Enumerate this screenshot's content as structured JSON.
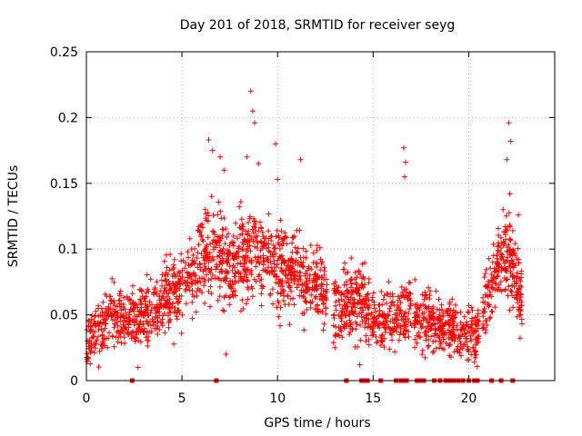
{
  "chart_data": {
    "type": "scatter",
    "title": "Day 201 of 2018, SRMTID for receiver seyg",
    "xlabel": "GPS time / hours",
    "ylabel": "SRMTID / TECUs",
    "xlim": [
      0,
      24.5
    ],
    "ylim": [
      0,
      0.25
    ],
    "x_ticks": [
      0,
      5,
      10,
      15,
      20
    ],
    "y_ticks": [
      0,
      0.05,
      0.1,
      0.15,
      0.2,
      0.25
    ],
    "x_tick_labels": [
      "0",
      "5",
      "10",
      "15",
      "20"
    ],
    "y_tick_labels": [
      "0",
      "0.05",
      "0.1",
      "0.15",
      "0.2",
      "0.25"
    ],
    "grid": true,
    "marker": "+",
    "color": "#ff0000",
    "series": [
      {
        "name": "SRMTID",
        "trend": [
          [
            0.0,
            0.03
          ],
          [
            0.5,
            0.04
          ],
          [
            1.0,
            0.045
          ],
          [
            1.5,
            0.047
          ],
          [
            2.0,
            0.05
          ],
          [
            2.5,
            0.045
          ],
          [
            3.0,
            0.05
          ],
          [
            3.5,
            0.055
          ],
          [
            4.0,
            0.062
          ],
          [
            4.5,
            0.068
          ],
          [
            5.0,
            0.072
          ],
          [
            5.5,
            0.078
          ],
          [
            6.0,
            0.09
          ],
          [
            6.5,
            0.1
          ],
          [
            7.0,
            0.09
          ],
          [
            7.5,
            0.088
          ],
          [
            8.0,
            0.09
          ],
          [
            8.5,
            0.1
          ],
          [
            9.0,
            0.1
          ],
          [
            9.5,
            0.09
          ],
          [
            10.0,
            0.085
          ],
          [
            10.5,
            0.085
          ],
          [
            11.0,
            0.085
          ],
          [
            11.5,
            0.08
          ],
          [
            12.0,
            0.072
          ],
          [
            12.5,
            0.065
          ],
          [
            13.0,
            0.06
          ],
          [
            13.5,
            0.058
          ],
          [
            14.0,
            0.06
          ],
          [
            14.5,
            0.058
          ],
          [
            15.0,
            0.045
          ],
          [
            15.5,
            0.045
          ],
          [
            16.0,
            0.048
          ],
          [
            16.5,
            0.052
          ],
          [
            17.0,
            0.055
          ],
          [
            17.5,
            0.042
          ],
          [
            18.0,
            0.045
          ],
          [
            18.5,
            0.04
          ],
          [
            19.0,
            0.04
          ],
          [
            19.5,
            0.035
          ],
          [
            20.0,
            0.035
          ],
          [
            20.5,
            0.04
          ],
          [
            21.0,
            0.06
          ],
          [
            21.5,
            0.09
          ],
          [
            22.0,
            0.095
          ],
          [
            22.5,
            0.075
          ],
          [
            22.8,
            0.06
          ]
        ],
        "outliers": [
          [
            6.4,
            0.183
          ],
          [
            6.6,
            0.175
          ],
          [
            7.0,
            0.17
          ],
          [
            7.2,
            0.16
          ],
          [
            8.6,
            0.22
          ],
          [
            8.7,
            0.205
          ],
          [
            8.8,
            0.196
          ],
          [
            8.4,
            0.17
          ],
          [
            9.0,
            0.165
          ],
          [
            9.9,
            0.18
          ],
          [
            10.0,
            0.153
          ],
          [
            11.2,
            0.168
          ],
          [
            16.6,
            0.177
          ],
          [
            16.7,
            0.166
          ],
          [
            16.65,
            0.155
          ],
          [
            22.1,
            0.196
          ],
          [
            22.2,
            0.182
          ],
          [
            22.0,
            0.168
          ],
          [
            22.15,
            0.142
          ],
          [
            21.8,
            0.13
          ],
          [
            22.6,
            0.126
          ],
          [
            13.0,
            0.025
          ],
          [
            2.7,
            0.01
          ],
          [
            7.3,
            0.02
          ],
          [
            14.3,
            0.012
          ]
        ],
        "zero_points": [
          2.4,
          6.8,
          13.6,
          14.4,
          14.55,
          14.7,
          15.4,
          16.2,
          16.45,
          16.6,
          16.75,
          17.3,
          17.4,
          17.55,
          17.65,
          18.2,
          18.5,
          18.8,
          19.0,
          19.2,
          19.45,
          19.7,
          20.0,
          20.3,
          20.45,
          21.2,
          21.7,
          22.3
        ]
      }
    ]
  }
}
